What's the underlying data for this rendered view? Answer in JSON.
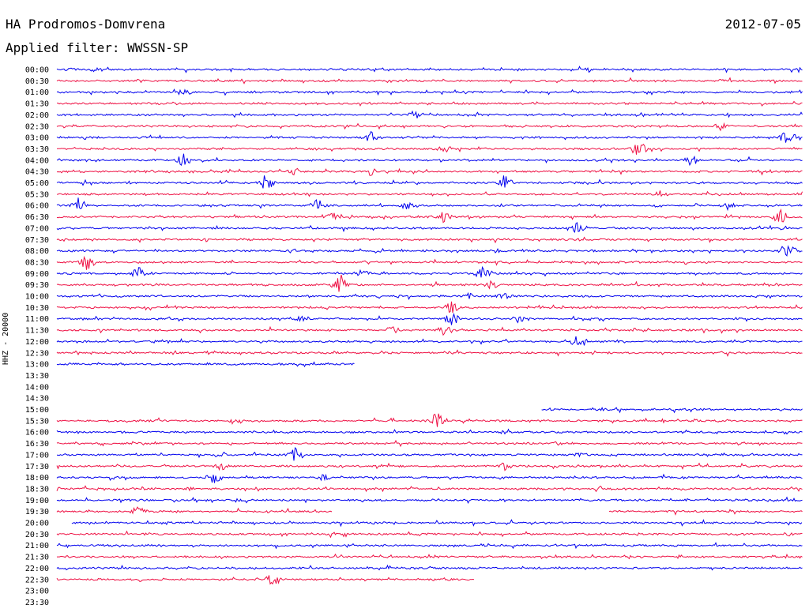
{
  "header": {
    "station": "HA Prodromos-Domvrena",
    "date": "2012-07-05",
    "filter_label": "Applied filter: WWSSN-SP"
  },
  "channel_label": "HHZ - 20000",
  "colors": {
    "even": "#0000ee",
    "odd": "#ee1144"
  },
  "rows": [
    {
      "time": "00:00",
      "start": 0,
      "end": 1,
      "events": [
        {
          "x": 0.02,
          "a": 1
        },
        {
          "x": 0.05,
          "a": 1
        }
      ]
    },
    {
      "time": "00:30",
      "start": 0,
      "end": 1,
      "events": [
        {
          "x": 0.11,
          "a": 1
        }
      ]
    },
    {
      "time": "01:00",
      "start": 0,
      "end": 1,
      "events": [
        {
          "x": 0.17,
          "a": 2
        }
      ]
    },
    {
      "time": "01:30",
      "start": 0,
      "end": 1,
      "events": []
    },
    {
      "time": "02:00",
      "start": 0,
      "end": 1,
      "events": [
        {
          "x": 0.48,
          "a": 2
        }
      ]
    },
    {
      "time": "02:30",
      "start": 0,
      "end": 1,
      "events": [
        {
          "x": 0.89,
          "a": 2
        }
      ]
    },
    {
      "time": "03:00",
      "start": 0,
      "end": 1,
      "events": [
        {
          "x": 0.42,
          "a": 3
        },
        {
          "x": 0.98,
          "a": 4
        }
      ]
    },
    {
      "time": "03:30",
      "start": 0,
      "end": 1,
      "events": [
        {
          "x": 0.78,
          "a": 4
        },
        {
          "x": 0.52,
          "a": 2
        }
      ]
    },
    {
      "time": "04:00",
      "start": 0,
      "end": 1,
      "events": [
        {
          "x": 0.17,
          "a": 3
        },
        {
          "x": 0.85,
          "a": 3
        }
      ]
    },
    {
      "time": "04:30",
      "start": 0,
      "end": 1,
      "events": [
        {
          "x": 0.32,
          "a": 2
        },
        {
          "x": 0.42,
          "a": 2
        },
        {
          "x": 0.95,
          "a": 2
        }
      ]
    },
    {
      "time": "05:00",
      "start": 0,
      "end": 1,
      "events": [
        {
          "x": 0.28,
          "a": 4
        },
        {
          "x": 0.6,
          "a": 4
        }
      ]
    },
    {
      "time": "05:30",
      "start": 0,
      "end": 1,
      "events": [
        {
          "x": 0.81,
          "a": 2
        }
      ]
    },
    {
      "time": "06:00",
      "start": 0,
      "end": 1,
      "events": [
        {
          "x": 0.03,
          "a": 4
        },
        {
          "x": 0.35,
          "a": 3
        },
        {
          "x": 0.47,
          "a": 2
        },
        {
          "x": 0.9,
          "a": 2
        }
      ]
    },
    {
      "time": "06:30",
      "start": 0,
      "end": 1,
      "events": [
        {
          "x": 0.37,
          "a": 2
        },
        {
          "x": 0.52,
          "a": 3
        },
        {
          "x": 0.97,
          "a": 4
        }
      ]
    },
    {
      "time": "07:00",
      "start": 0,
      "end": 1,
      "events": [
        {
          "x": 0.7,
          "a": 3
        }
      ]
    },
    {
      "time": "07:30",
      "start": 0,
      "end": 1,
      "events": [
        {
          "x": 0.2,
          "a": 1
        }
      ]
    },
    {
      "time": "08:00",
      "start": 0,
      "end": 1,
      "events": [
        {
          "x": 0.98,
          "a": 4
        }
      ]
    },
    {
      "time": "08:30",
      "start": 0,
      "end": 1,
      "events": [
        {
          "x": 0.04,
          "a": 4
        }
      ]
    },
    {
      "time": "09:00",
      "start": 0,
      "end": 1,
      "events": [
        {
          "x": 0.11,
          "a": 3
        },
        {
          "x": 0.41,
          "a": 2
        },
        {
          "x": 0.57,
          "a": 3
        }
      ]
    },
    {
      "time": "09:30",
      "start": 0,
      "end": 1,
      "events": [
        {
          "x": 0.38,
          "a": 5
        },
        {
          "x": 0.58,
          "a": 3
        }
      ]
    },
    {
      "time": "10:00",
      "start": 0,
      "end": 1,
      "events": [
        {
          "x": 0.55,
          "a": 2
        },
        {
          "x": 0.6,
          "a": 2
        }
      ]
    },
    {
      "time": "10:30",
      "start": 0,
      "end": 1,
      "events": [
        {
          "x": 0.53,
          "a": 3
        }
      ]
    },
    {
      "time": "11:00",
      "start": 0,
      "end": 1,
      "events": [
        {
          "x": 0.33,
          "a": 2
        },
        {
          "x": 0.53,
          "a": 3
        },
        {
          "x": 0.62,
          "a": 2
        }
      ]
    },
    {
      "time": "11:30",
      "start": 0,
      "end": 1,
      "events": [
        {
          "x": 0.45,
          "a": 2
        },
        {
          "x": 0.52,
          "a": 3
        }
      ]
    },
    {
      "time": "12:00",
      "start": 0,
      "end": 1,
      "events": [
        {
          "x": 0.7,
          "a": 4
        }
      ]
    },
    {
      "time": "12:30",
      "start": 0,
      "end": 1,
      "events": [
        {
          "x": 0.2,
          "a": 1
        }
      ]
    },
    {
      "time": "13:00",
      "start": 0,
      "end": 0.4,
      "events": []
    },
    {
      "time": "13:30",
      "start": 0,
      "end": 0,
      "events": []
    },
    {
      "time": "14:00",
      "start": 0,
      "end": 0,
      "events": []
    },
    {
      "time": "14:30",
      "start": 0,
      "end": 0,
      "events": []
    },
    {
      "time": "15:00",
      "start": 0.65,
      "end": 1,
      "events": [
        {
          "x": 0.73,
          "a": 1
        },
        {
          "x": 0.85,
          "a": 1
        }
      ]
    },
    {
      "time": "15:30",
      "start": 0,
      "end": 1,
      "events": [
        {
          "x": 0.24,
          "a": 2
        },
        {
          "x": 0.51,
          "a": 4
        }
      ]
    },
    {
      "time": "16:00",
      "start": 0,
      "end": 1,
      "events": []
    },
    {
      "time": "16:30",
      "start": 0,
      "end": 1,
      "events": [
        {
          "x": 0.67,
          "a": 1
        }
      ]
    },
    {
      "time": "17:00",
      "start": 0,
      "end": 1,
      "events": [
        {
          "x": 0.22,
          "a": 2
        },
        {
          "x": 0.32,
          "a": 4
        },
        {
          "x": 0.7,
          "a": 1
        }
      ]
    },
    {
      "time": "17:30",
      "start": 0,
      "end": 1,
      "events": [
        {
          "x": 0.22,
          "a": 2
        },
        {
          "x": 0.6,
          "a": 2
        }
      ]
    },
    {
      "time": "18:00",
      "start": 0,
      "end": 1,
      "events": [
        {
          "x": 0.21,
          "a": 3
        },
        {
          "x": 0.36,
          "a": 2
        }
      ]
    },
    {
      "time": "18:30",
      "start": 0,
      "end": 1,
      "events": [
        {
          "x": 0.18,
          "a": 1
        }
      ]
    },
    {
      "time": "19:00",
      "start": 0,
      "end": 1,
      "events": [
        {
          "x": 0.24,
          "a": 1
        }
      ]
    },
    {
      "time": "19:30",
      "start": 0,
      "end": 1,
      "gap": [
        0.37,
        0.74
      ],
      "events": [
        {
          "x": 0.11,
          "a": 3
        }
      ]
    },
    {
      "time": "20:00",
      "start": 0.02,
      "end": 1,
      "events": [
        {
          "x": 0.43,
          "a": 1
        }
      ]
    },
    {
      "time": "20:30",
      "start": 0,
      "end": 1,
      "events": [
        {
          "x": 0.98,
          "a": 1
        }
      ]
    },
    {
      "time": "21:00",
      "start": 0,
      "end": 1,
      "events": []
    },
    {
      "time": "21:30",
      "start": 0,
      "end": 1,
      "events": []
    },
    {
      "time": "22:00",
      "start": 0,
      "end": 1,
      "events": []
    },
    {
      "time": "22:30",
      "start": 0,
      "end": 0.56,
      "events": [
        {
          "x": 0.29,
          "a": 3
        }
      ]
    },
    {
      "time": "23:00",
      "start": 0,
      "end": 0,
      "events": []
    },
    {
      "time": "23:30",
      "start": 0,
      "end": 0,
      "events": []
    }
  ]
}
